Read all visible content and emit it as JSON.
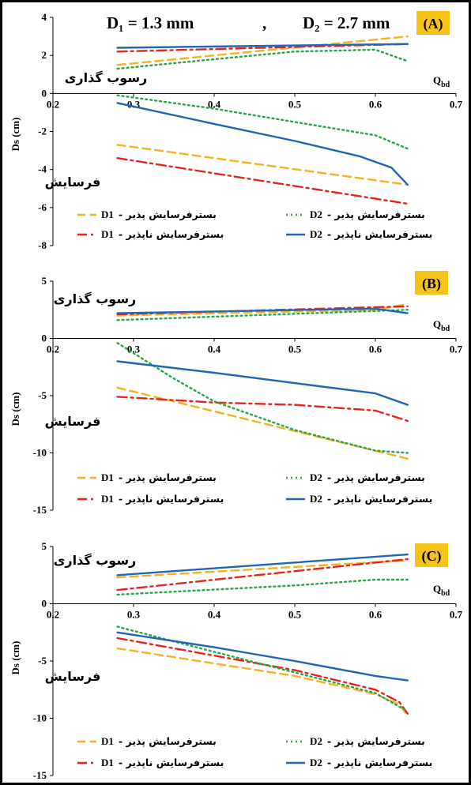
{
  "header": {
    "d1_label": "D₁ = 1.3 mm",
    "separator": ",",
    "d2_label": "D₂ = 2.7 mm"
  },
  "colors": {
    "d1_erodible": "#F5B324",
    "d1_nonerodible": "#E8231F",
    "d2_erodible": "#27A745",
    "d2_nonerodible": "#2266B8",
    "badge_bg": "#F7C21A"
  },
  "legend_entries": {
    "d1_erodible": {
      "code": "D1",
      "text": "بسترفرسایش پذیر -"
    },
    "d2_erodible": {
      "code": "D2",
      "text": "بسترفرسایش پذیر -"
    },
    "d1_nonerodible": {
      "code": "D1",
      "text": "بسترفرسایش ناپذیر -"
    },
    "d2_nonerodible": {
      "code": "D2",
      "text": "بسترفرسایش ناپذیر -"
    }
  },
  "chart_data": [
    {
      "type": "line",
      "panel": "(A)",
      "xlabel": "Qbd",
      "ylabel": "Ds (cm)",
      "xlim": [
        0.2,
        0.7
      ],
      "xticks": [
        "0.2",
        "0.3",
        "0.4",
        "0.5",
        "0.6",
        "0.7"
      ],
      "ylim": [
        -8,
        4
      ],
      "yticks": [
        "4",
        "2",
        "0",
        "-2",
        "-4",
        "-6",
        "-8"
      ],
      "annotations": {
        "deposition": "رسوب گذاری",
        "scour": "فرسایش"
      },
      "series": [
        {
          "group": "deposition",
          "key": "d1_erodible",
          "style": "dash",
          "x": [
            0.28,
            0.64
          ],
          "y": [
            1.5,
            3.0
          ]
        },
        {
          "group": "deposition",
          "key": "d1_nonerodible",
          "style": "dashdot",
          "x": [
            0.28,
            0.64
          ],
          "y": [
            2.2,
            2.6
          ]
        },
        {
          "group": "deposition",
          "key": "d2_erodible",
          "style": "dot",
          "x": [
            0.28,
            0.4,
            0.5,
            0.6,
            0.62,
            0.64
          ],
          "y": [
            1.3,
            1.8,
            2.2,
            2.3,
            2.0,
            1.7
          ]
        },
        {
          "group": "deposition",
          "key": "d2_nonerodible",
          "style": "solid",
          "x": [
            0.28,
            0.64
          ],
          "y": [
            2.4,
            2.6
          ]
        },
        {
          "group": "scour",
          "key": "d1_erodible",
          "style": "dash",
          "x": [
            0.28,
            0.64
          ],
          "y": [
            -2.7,
            -4.8
          ]
        },
        {
          "group": "scour",
          "key": "d1_nonerodible",
          "style": "dashdot",
          "x": [
            0.28,
            0.64
          ],
          "y": [
            -3.4,
            -5.8
          ]
        },
        {
          "group": "scour",
          "key": "d2_erodible",
          "style": "dot",
          "x": [
            0.28,
            0.4,
            0.5,
            0.6,
            0.64
          ],
          "y": [
            -0.1,
            -0.8,
            -1.5,
            -2.2,
            -2.9
          ]
        },
        {
          "group": "scour",
          "key": "d2_nonerodible",
          "style": "solid",
          "x": [
            0.28,
            0.4,
            0.5,
            0.58,
            0.62,
            0.64
          ],
          "y": [
            -0.5,
            -1.6,
            -2.5,
            -3.3,
            -3.9,
            -4.8
          ]
        }
      ]
    },
    {
      "type": "line",
      "panel": "(B)",
      "xlabel": "Qbd",
      "ylabel": "Ds (cm)",
      "xlim": [
        0.2,
        0.7
      ],
      "xticks": [
        "0.2",
        "0.3",
        "0.4",
        "0.5",
        "0.6",
        "0.7"
      ],
      "ylim": [
        -15,
        5
      ],
      "yticks": [
        "5",
        "0",
        "-5",
        "-10",
        "-15"
      ],
      "annotations": {
        "deposition": "رسوب گذاری",
        "scour": "فرسایش"
      },
      "series": [
        {
          "group": "deposition",
          "key": "d1_erodible",
          "style": "dash",
          "x": [
            0.28,
            0.6,
            0.64
          ],
          "y": [
            2.0,
            2.5,
            3.0
          ]
        },
        {
          "group": "deposition",
          "key": "d1_nonerodible",
          "style": "dashdot",
          "x": [
            0.28,
            0.64
          ],
          "y": [
            2.1,
            2.8
          ]
        },
        {
          "group": "deposition",
          "key": "d2_erodible",
          "style": "dot",
          "x": [
            0.28,
            0.64
          ],
          "y": [
            1.6,
            2.5
          ]
        },
        {
          "group": "deposition",
          "key": "d2_nonerodible",
          "style": "solid",
          "x": [
            0.28,
            0.6,
            0.64
          ],
          "y": [
            2.2,
            2.6,
            2.2
          ]
        },
        {
          "group": "scour",
          "key": "d1_erodible",
          "style": "dash",
          "x": [
            0.28,
            0.64
          ],
          "y": [
            -4.3,
            -10.5
          ]
        },
        {
          "group": "scour",
          "key": "d1_nonerodible",
          "style": "dashdot",
          "x": [
            0.28,
            0.4,
            0.5,
            0.6,
            0.64
          ],
          "y": [
            -5.1,
            -5.6,
            -5.8,
            -6.3,
            -7.2
          ]
        },
        {
          "group": "scour",
          "key": "d2_erodible",
          "style": "dot",
          "x": [
            0.28,
            0.35,
            0.4,
            0.5,
            0.6,
            0.64
          ],
          "y": [
            -0.4,
            -3.5,
            -5.5,
            -8.0,
            -9.8,
            -10.0
          ]
        },
        {
          "group": "scour",
          "key": "d2_nonerodible",
          "style": "solid",
          "x": [
            0.28,
            0.4,
            0.5,
            0.6,
            0.64
          ],
          "y": [
            -2.0,
            -3.0,
            -3.9,
            -4.8,
            -5.8
          ]
        }
      ]
    },
    {
      "type": "line",
      "panel": "(C)",
      "xlabel": "Qbd",
      "ylabel": "Ds (cm)",
      "xlim": [
        0.2,
        0.7
      ],
      "xticks": [
        "0.2",
        "0.3",
        "0.4",
        "0.5",
        "0.6",
        "0.7"
      ],
      "ylim": [
        -15,
        5
      ],
      "yticks": [
        "5",
        "0",
        "-5",
        "-10",
        "-15"
      ],
      "annotations": {
        "deposition": "رسوب گذاری",
        "scour": "فرسایش"
      },
      "series": [
        {
          "group": "deposition",
          "key": "d1_erodible",
          "style": "dash",
          "x": [
            0.28,
            0.64
          ],
          "y": [
            2.3,
            3.8
          ]
        },
        {
          "group": "deposition",
          "key": "d1_nonerodible",
          "style": "dashdot",
          "x": [
            0.28,
            0.64
          ],
          "y": [
            1.2,
            3.9
          ]
        },
        {
          "group": "deposition",
          "key": "d2_erodible",
          "style": "dot",
          "x": [
            0.28,
            0.5,
            0.6,
            0.64
          ],
          "y": [
            0.8,
            1.6,
            2.1,
            2.1
          ]
        },
        {
          "group": "deposition",
          "key": "d2_nonerodible",
          "style": "solid",
          "x": [
            0.28,
            0.64
          ],
          "y": [
            2.5,
            4.3
          ]
        },
        {
          "group": "scour",
          "key": "d1_erodible",
          "style": "dash",
          "x": [
            0.28,
            0.5,
            0.6,
            0.63,
            0.64
          ],
          "y": [
            -3.9,
            -6.3,
            -7.9,
            -8.8,
            -9.8
          ]
        },
        {
          "group": "scour",
          "key": "d1_nonerodible",
          "style": "dashdot",
          "x": [
            0.28,
            0.5,
            0.6,
            0.63,
            0.64
          ],
          "y": [
            -3.0,
            -5.8,
            -7.5,
            -8.6,
            -9.6
          ]
        },
        {
          "group": "scour",
          "key": "d2_erodible",
          "style": "dot",
          "x": [
            0.28,
            0.4,
            0.5,
            0.6,
            0.64
          ],
          "y": [
            -2.0,
            -4.2,
            -6.0,
            -7.8,
            -9.4
          ]
        },
        {
          "group": "scour",
          "key": "d2_nonerodible",
          "style": "solid",
          "x": [
            0.28,
            0.4,
            0.5,
            0.6,
            0.64
          ],
          "y": [
            -2.5,
            -3.8,
            -5.0,
            -6.3,
            -6.7
          ]
        }
      ]
    }
  ]
}
